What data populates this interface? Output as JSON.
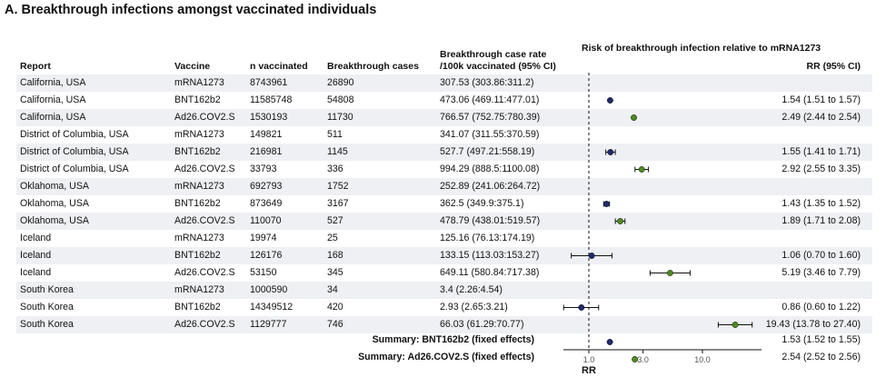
{
  "title": "A. Breakthrough infections amongst vaccinated individuals",
  "headers": {
    "report": "Report",
    "vaccine": "Vaccine",
    "n_vaccinated": "n vaccinated",
    "cases": "Breakthrough cases",
    "rate_line1": "Breakthrough case rate",
    "rate_line2": "/100k vaccinated (95% CI)",
    "plot_title": "Risk of breakthrough infection relative to mRNA1273",
    "rr_ci": "RR (95% CI)"
  },
  "rows": [
    {
      "report": "California, USA",
      "vaccine": "mRNA1273",
      "n": "8743961",
      "cases": "26890",
      "rate": "307.53 (303.86:311.2)",
      "rr_text": ""
    },
    {
      "report": "California, USA",
      "vaccine": "BNT162b2",
      "n": "11585748",
      "cases": "54808",
      "rate": "473.06 (469.11:477.01)",
      "rr_text": "1.54 (1.51 to 1.57)"
    },
    {
      "report": "California, USA",
      "vaccine": "Ad26.COV2.S",
      "n": "1530193",
      "cases": "11730",
      "rate": "766.57 (752.75:780.39)",
      "rr_text": "2.49 (2.44 to 2.54)"
    },
    {
      "report": "District of Columbia, USA",
      "vaccine": "mRNA1273",
      "n": "149821",
      "cases": "511",
      "rate": "341.07 (311.55:370.59)",
      "rr_text": ""
    },
    {
      "report": "District of Columbia, USA",
      "vaccine": "BNT162b2",
      "n": "216981",
      "cases": "1145",
      "rate": "527.7 (497.21:558.19)",
      "rr_text": "1.55 (1.41 to 1.71)"
    },
    {
      "report": "District of Columbia, USA",
      "vaccine": "Ad26.COV2.S",
      "n": "33793",
      "cases": "336",
      "rate": "994.29 (888.5:1100.08)",
      "rr_text": "2.92 (2.55 to 3.35)"
    },
    {
      "report": "Oklahoma, USA",
      "vaccine": "mRNA1273",
      "n": "692793",
      "cases": "1752",
      "rate": "252.89 (241.06:264.72)",
      "rr_text": ""
    },
    {
      "report": "Oklahoma, USA",
      "vaccine": "BNT162b2",
      "n": "873649",
      "cases": "3167",
      "rate": "362.5 (349.9:375.1)",
      "rr_text": "1.43 (1.35 to 1.52)"
    },
    {
      "report": "Oklahoma, USA",
      "vaccine": "Ad26.COV2.S",
      "n": "110070",
      "cases": "527",
      "rate": "478.79 (438.01:519.57)",
      "rr_text": "1.89 (1.71 to 2.08)"
    },
    {
      "report": "Iceland",
      "vaccine": "mRNA1273",
      "n": "19974",
      "cases": "25",
      "rate": "125.16 (76.13:174.19)",
      "rr_text": ""
    },
    {
      "report": "Iceland",
      "vaccine": "BNT162b2",
      "n": "126176",
      "cases": "168",
      "rate": "133.15 (113.03:153.27)",
      "rr_text": "1.06 (0.70 to 1.60)"
    },
    {
      "report": "Iceland",
      "vaccine": "Ad26.COV2.S",
      "n": "53150",
      "cases": "345",
      "rate": "649.11 (580.84:717.38)",
      "rr_text": "5.19 (3.46 to 7.79)"
    },
    {
      "report": "South Korea",
      "vaccine": "mRNA1273",
      "n": "1000590",
      "cases": "34",
      "rate": "3.4 (2.26:4.54)",
      "rr_text": ""
    },
    {
      "report": "South Korea",
      "vaccine": "BNT162b2",
      "n": "14349512",
      "cases": "420",
      "rate": "2.93 (2.65:3.21)",
      "rr_text": "0.86 (0.60 to 1.22)"
    },
    {
      "report": "South Korea",
      "vaccine": "Ad26.COV2.S",
      "n": "1129777",
      "cases": "746",
      "rate": "66.03 (61.29:70.77)",
      "rr_text": "19.43 (13.78 to 27.40)"
    }
  ],
  "summaries": [
    {
      "label": "Summary: BNT162b2 (fixed effects)",
      "rr_text": "1.53 (1.52 to 1.55)"
    },
    {
      "label": "Summary: Ad26.COV2.S (fixed effects)",
      "rr_text": "2.54 (2.52 to 2.56)"
    }
  ],
  "colors": {
    "BNT162b2": "#1f2a6b",
    "Ad26.COV2.S": "#4f8a1f",
    "stripe": "#eef0f3",
    "axis": "#111111"
  },
  "chart_data": {
    "type": "scatter",
    "title": "Risk of breakthrough infection relative to mRNA1273",
    "xlabel": "RR",
    "x_scale": "log",
    "x_ticks": [
      "1.0",
      "3.0",
      "10.0"
    ],
    "reference_line": 1.0,
    "series": [
      {
        "name": "BNT162b2",
        "points": [
          {
            "row": 1,
            "rr": 1.54,
            "lo": 1.51,
            "hi": 1.57
          },
          {
            "row": 4,
            "rr": 1.55,
            "lo": 1.41,
            "hi": 1.71
          },
          {
            "row": 7,
            "rr": 1.43,
            "lo": 1.35,
            "hi": 1.52
          },
          {
            "row": 10,
            "rr": 1.06,
            "lo": 0.7,
            "hi": 1.6
          },
          {
            "row": 13,
            "rr": 0.86,
            "lo": 0.6,
            "hi": 1.22
          },
          {
            "row": 15,
            "rr": 1.53,
            "lo": 1.52,
            "hi": 1.55
          }
        ]
      },
      {
        "name": "Ad26.COV2.S",
        "points": [
          {
            "row": 2,
            "rr": 2.49,
            "lo": 2.44,
            "hi": 2.54
          },
          {
            "row": 5,
            "rr": 2.92,
            "lo": 2.55,
            "hi": 3.35
          },
          {
            "row": 8,
            "rr": 1.89,
            "lo": 1.71,
            "hi": 2.08
          },
          {
            "row": 11,
            "rr": 5.19,
            "lo": 3.46,
            "hi": 7.79
          },
          {
            "row": 14,
            "rr": 19.43,
            "lo": 13.78,
            "hi": 27.4
          },
          {
            "row": 16,
            "rr": 2.54,
            "lo": 2.52,
            "hi": 2.56
          }
        ]
      }
    ]
  }
}
